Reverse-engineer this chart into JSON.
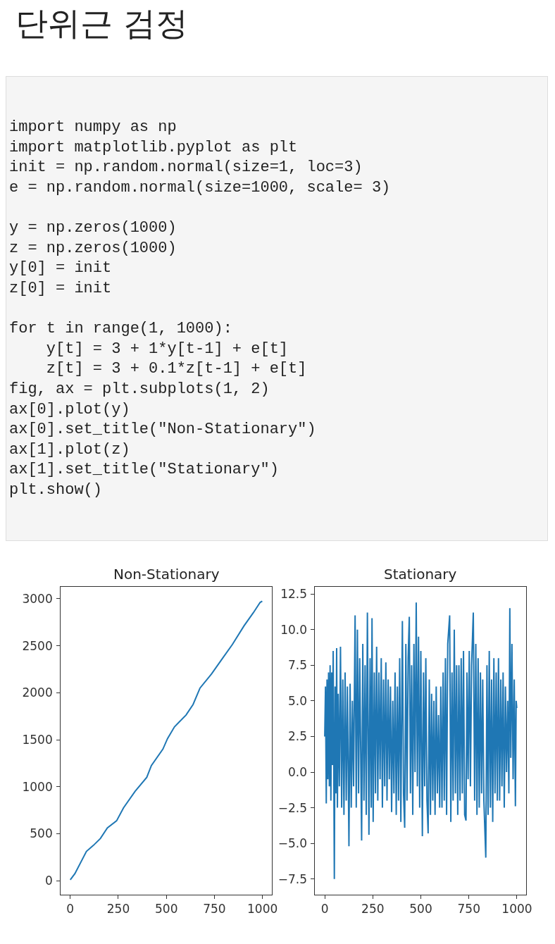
{
  "chart_data": [
    {
      "type": "other",
      "title": "단위근 검정",
      "annotations": [
        "import numpy as np\nimport matplotlib.pyplot as plt\ninit = np.random.normal(size=1, loc=3)\ne = np.random.normal(size=1000, scale= 3)\n\ny = np.zeros(1000)\nz = np.zeros(1000)\ny[0] = init\nz[0] = init\n\nfor t in range(1, 1000):\n    y[t] = 3 + 1*y[t-1] + e[t]\n    z[t] = 3 + 0.1*z[t-1] + e[t]\nfig, ax = plt.subplots(1, 2)\nax[0].plot(y)\nax[0].set_title(\"Non-Stationary\")\nax[1].plot(z)\nax[1].set_title(\"Stationary\")\nplt.show()"
      ]
    },
    {
      "type": "line",
      "title": "Non-Stationary",
      "xlim": [
        -50,
        1049
      ],
      "ylim": [
        -149,
        3127
      ],
      "xticks": [
        0,
        250,
        500,
        750,
        1000
      ],
      "yticks": [
        0,
        500,
        1000,
        1500,
        2000,
        2500,
        3000
      ],
      "series": [
        {
          "color": "#1f77b4",
          "x": [
            0,
            24,
            84,
            120,
            157,
            193,
            241,
            277,
            337,
            398,
            422,
            482,
            506,
            542,
            602,
            639,
            675,
            735,
            795,
            843,
            904,
            952,
            988,
            999
          ],
          "values": [
            10,
            75,
            312,
            375,
            450,
            562,
            637,
            775,
            950,
            1100,
            1225,
            1400,
            1512,
            1637,
            1762,
            1875,
            2050,
            2200,
            2375,
            2512,
            2712,
            2850,
            2962,
            2975
          ]
        }
      ]
    },
    {
      "type": "line",
      "title": "Stationary",
      "xlim": [
        -50,
        1049
      ],
      "ylim": [
        -8.6,
        13.0
      ],
      "xticks": [
        0,
        250,
        500,
        750,
        1000
      ],
      "yticks": [
        {
          "value": -7.5,
          "label": "−7.5"
        },
        {
          "value": -5,
          "label": "−5.0"
        },
        {
          "value": -2.5,
          "label": "−2.5"
        },
        {
          "value": 0,
          "label": "0.0"
        },
        {
          "value": 2.5,
          "label": "2.5"
        },
        {
          "value": 5,
          "label": "5.0"
        },
        {
          "value": 7.5,
          "label": "7.5"
        },
        {
          "value": 10,
          "label": "10.0"
        },
        {
          "value": 12.5,
          "label": "12.5"
        }
      ],
      "series": [
        {
          "color": "#1f77b4",
          "x": [
            0,
            4,
            8,
            12,
            16,
            20,
            24,
            28,
            32,
            36,
            40,
            44,
            50,
            54,
            58,
            62,
            66,
            70,
            76,
            82,
            88,
            94,
            100,
            106,
            112,
            118,
            126,
            132,
            138,
            144,
            150,
            158,
            164,
            170,
            176,
            182,
            192,
            198,
            204,
            210,
            216,
            222,
            230,
            236,
            242,
            246,
            252,
            258,
            264,
            270,
            276,
            282,
            288,
            294,
            300,
            306,
            312,
            318,
            324,
            330,
            336,
            342,
            348,
            354,
            360,
            366,
            372,
            378,
            384,
            390,
            396,
            404,
            410,
            416,
            422,
            428,
            434,
            440,
            446,
            452,
            458,
            464,
            470,
            476,
            482,
            488,
            494,
            500,
            508,
            514,
            520,
            526,
            532,
            538,
            544,
            550,
            556,
            562,
            568,
            574,
            580,
            586,
            592,
            598,
            604,
            610,
            616,
            622,
            628,
            634,
            640,
            650,
            656,
            662,
            668,
            674,
            680,
            686,
            692,
            698,
            704,
            710,
            716,
            722,
            728,
            735,
            740,
            746,
            752,
            758,
            764,
            773,
            780,
            786,
            792,
            798,
            804,
            810,
            816,
            822,
            828,
            838,
            844,
            850,
            856,
            862,
            868,
            874,
            880,
            886,
            892,
            898,
            904,
            910,
            916,
            922,
            928,
            934,
            940,
            946,
            952,
            958,
            963,
            968,
            974,
            980,
            986,
            992,
            996,
            999
          ],
          "values": [
            2.5,
            6.0,
            -2.2,
            6.5,
            -0.5,
            7.0,
            -1.0,
            7.5,
            -2.0,
            7.0,
            0.5,
            8.5,
            -7.5,
            6.0,
            -1.5,
            8.7,
            -2.5,
            5.5,
            -1.0,
            8.8,
            -2.5,
            6.5,
            -3.0,
            7.0,
            -2.0,
            6.0,
            -5.2,
            6.2,
            -2.5,
            5.0,
            -1.0,
            11.0,
            -2.5,
            10.0,
            -1.5,
            8.0,
            -4.8,
            9.0,
            -2.0,
            7.5,
            -3.0,
            11.2,
            -4.4,
            8.0,
            -2.5,
            10.8,
            -3.5,
            7.0,
            -1.5,
            8.8,
            -2.0,
            7.0,
            -0.5,
            8.0,
            -2.5,
            6.5,
            -1.0,
            7.7,
            -2.0,
            6.5,
            -0.5,
            6.0,
            -2.8,
            5.0,
            -1.5,
            7.0,
            -3.0,
            6.0,
            -2.0,
            8.0,
            -3.5,
            10.6,
            -1.5,
            -3.9,
            9.0,
            -2.0,
            8.0,
            10.9,
            -1.5,
            7.5,
            -3.0,
            9.0,
            0.0,
            11.9,
            -1.0,
            9.5,
            -2.5,
            8.5,
            -4.5,
            7.0,
            -1.0,
            8.0,
            -2.0,
            -4.3,
            6.5,
            -3.0,
            5.5,
            -2.0,
            5.0,
            -3.0,
            6.0,
            -1.5,
            4.0,
            -2.5,
            6.0,
            -2.5,
            7.0,
            -2.0,
            8.0,
            -3.0,
            9.0,
            11.0,
            -3.5,
            7.0,
            -2.0,
            10.0,
            -1.5,
            7.5,
            -3.0,
            7.5,
            -2.0,
            8.0,
            -1.5,
            8.5,
            -3.0,
            -3.4,
            7.0,
            -0.5,
            8.5,
            -1.0,
            7.5,
            11.2,
            -2.0,
            9.0,
            -3.0,
            8.0,
            -2.5,
            7.0,
            -1.5,
            6.5,
            -2.0,
            -6.0,
            7.5,
            -3.0,
            8.5,
            -2.5,
            6.5,
            -3.5,
            8.0,
            -1.5,
            7.0,
            -2.0,
            8.0,
            -2.0,
            6.5,
            -1.0,
            7.0,
            -2.5,
            6.0,
            0.0,
            5.0,
            -1.5,
            11.5,
            1.0,
            9.0,
            -0.5,
            6.5,
            -2.4,
            5.0,
            4.5
          ]
        }
      ]
    }
  ]
}
